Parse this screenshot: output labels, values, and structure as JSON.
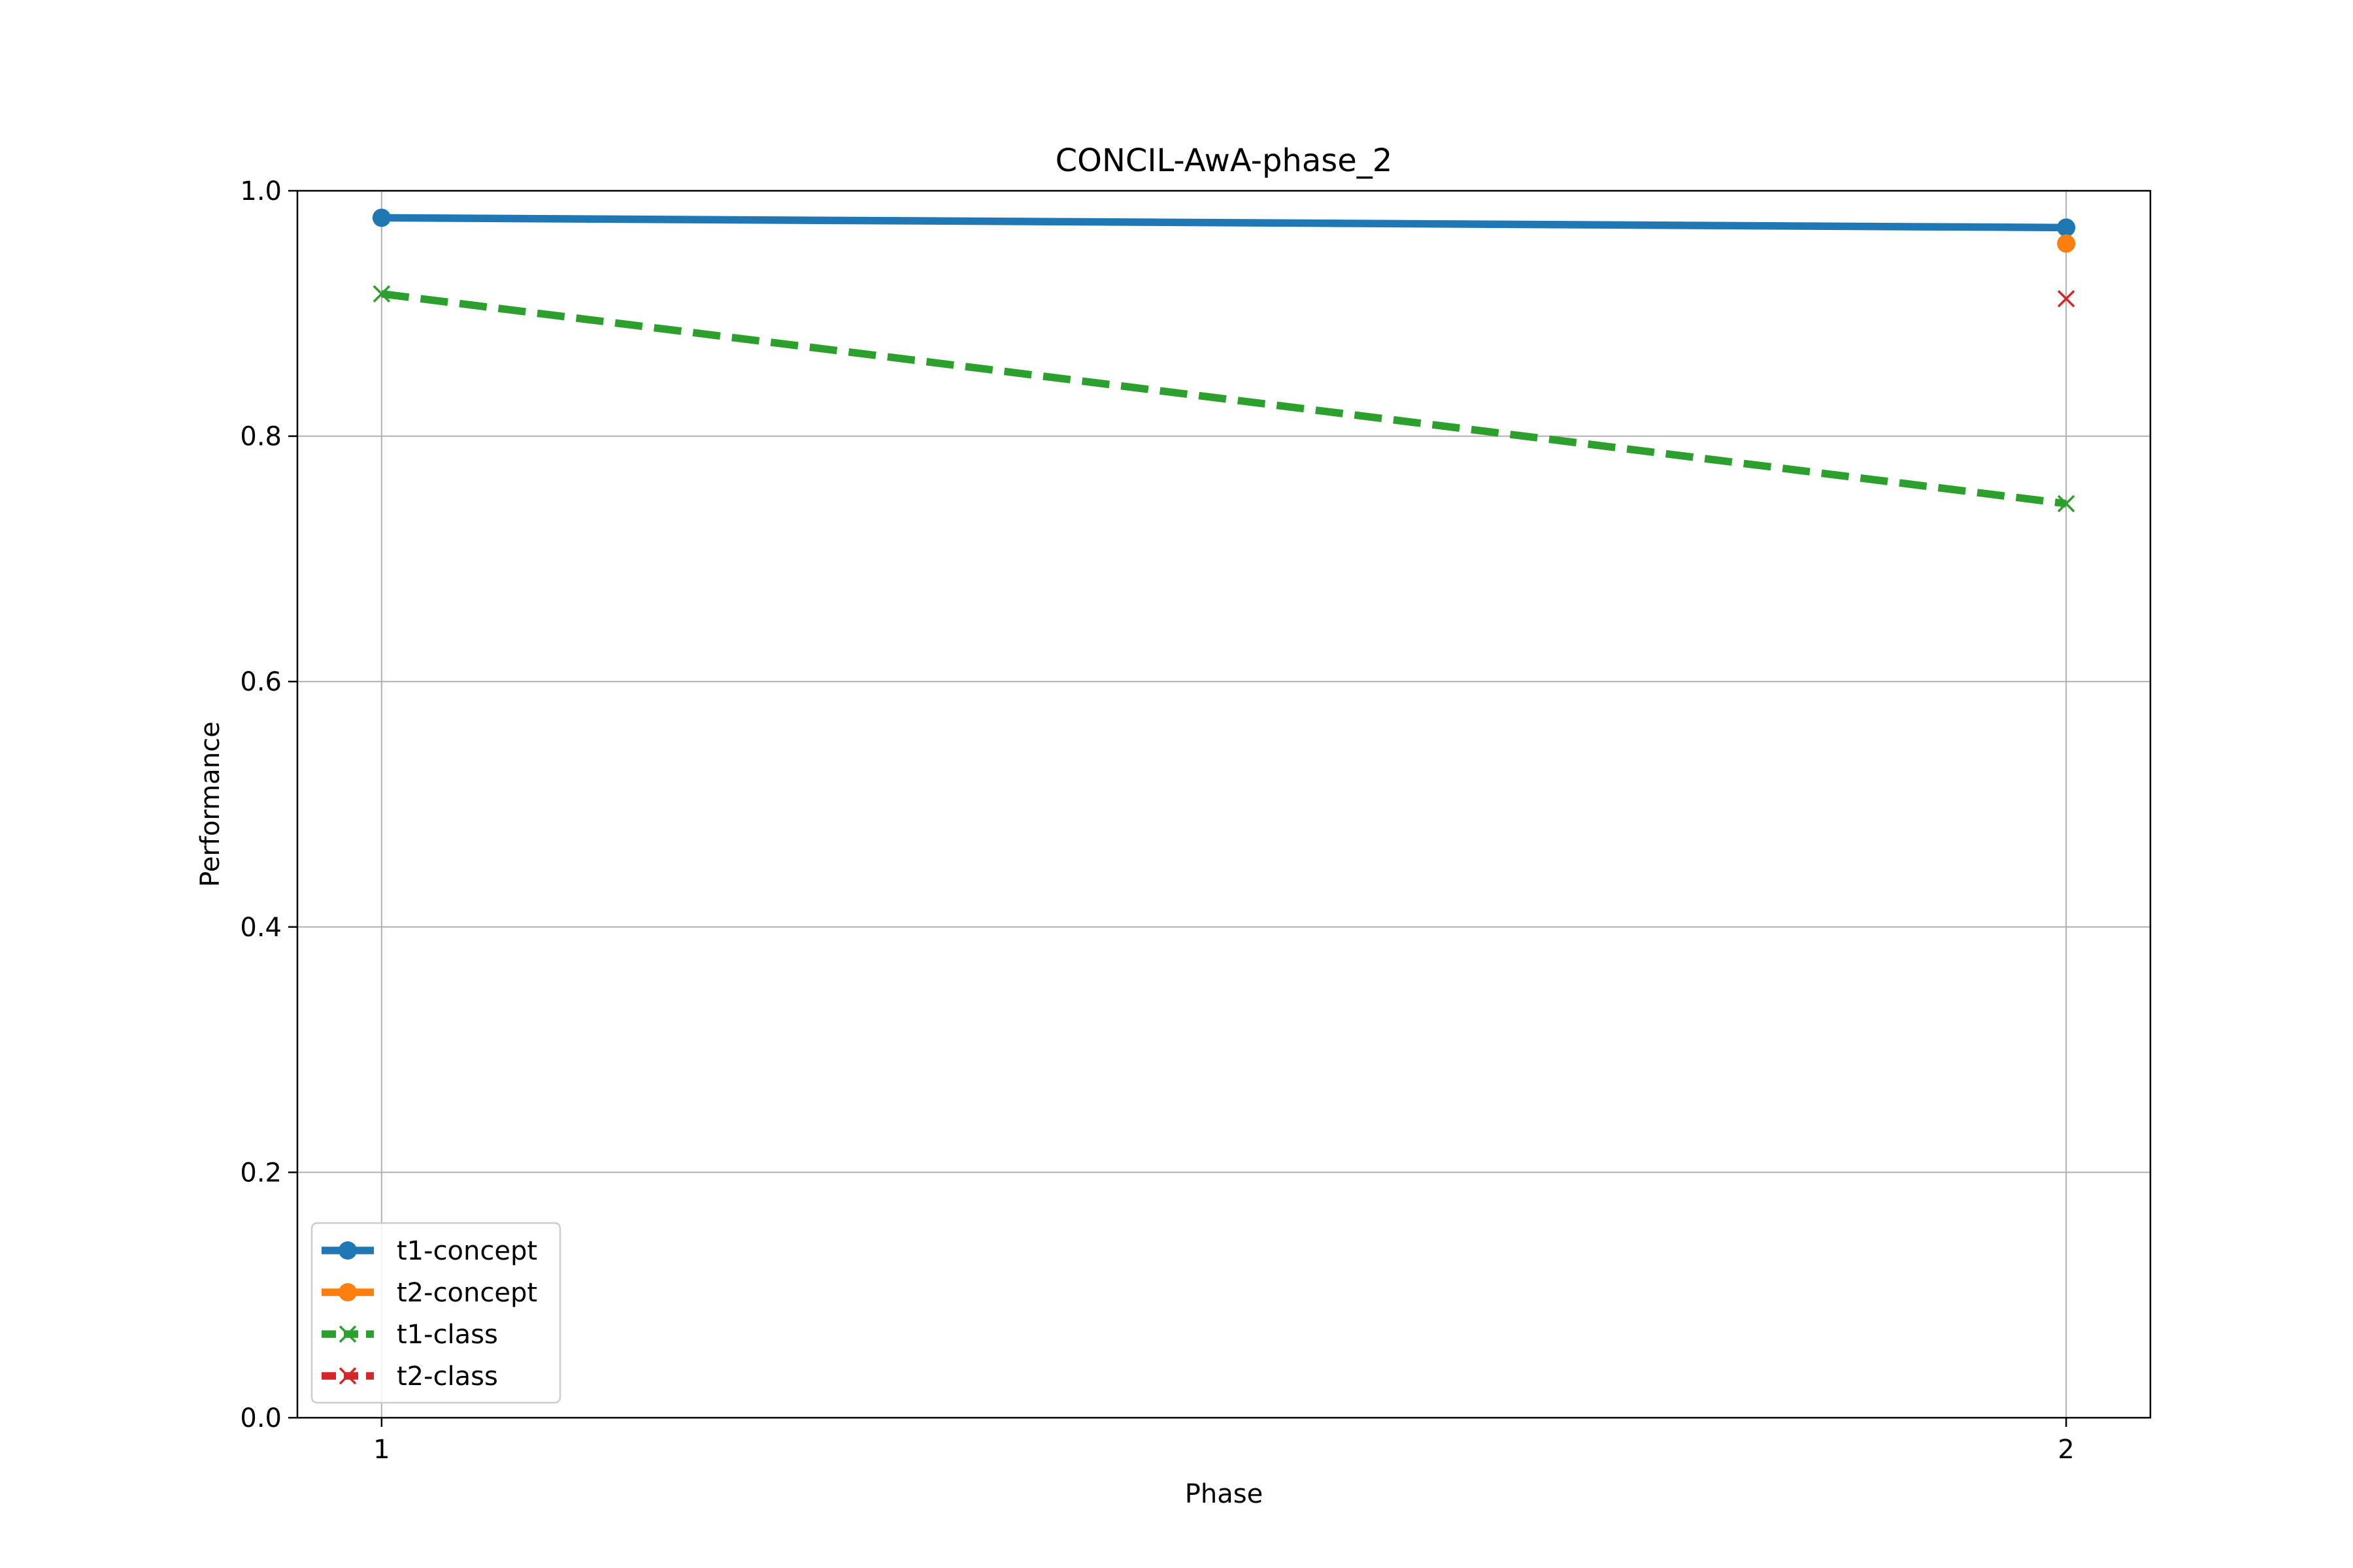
{
  "chart_data": {
    "type": "line",
    "title": "CONCIL-AwA-phase_2",
    "xlabel": "Phase",
    "ylabel": "Performance",
    "x_ticks": [
      1,
      2
    ],
    "x_tick_labels": [
      "1",
      "2"
    ],
    "xlim": [
      0.95,
      2.05
    ],
    "ylim": [
      0.0,
      1.0
    ],
    "y_ticks": [
      0.0,
      0.2,
      0.4,
      0.6,
      0.8,
      1.0
    ],
    "y_tick_labels": [
      "0.0",
      "0.2",
      "0.4",
      "0.6",
      "0.8",
      "1.0"
    ],
    "grid": true,
    "legend_position": "lower-left",
    "series": [
      {
        "name": "t1-concept",
        "x": [
          1,
          2
        ],
        "values": [
          0.978,
          0.97
        ],
        "color": "#1f77b4",
        "linestyle": "solid",
        "marker": "circle"
      },
      {
        "name": "t2-concept",
        "x": [
          2
        ],
        "values": [
          0.957
        ],
        "color": "#ff7f0e",
        "linestyle": "solid",
        "marker": "circle"
      },
      {
        "name": "t1-class",
        "x": [
          1,
          2
        ],
        "values": [
          0.916,
          0.745
        ],
        "color": "#2ca02c",
        "linestyle": "dashed",
        "marker": "x"
      },
      {
        "name": "t2-class",
        "x": [
          2
        ],
        "values": [
          0.912
        ],
        "color": "#d62728",
        "linestyle": "dashed",
        "marker": "x"
      }
    ]
  }
}
